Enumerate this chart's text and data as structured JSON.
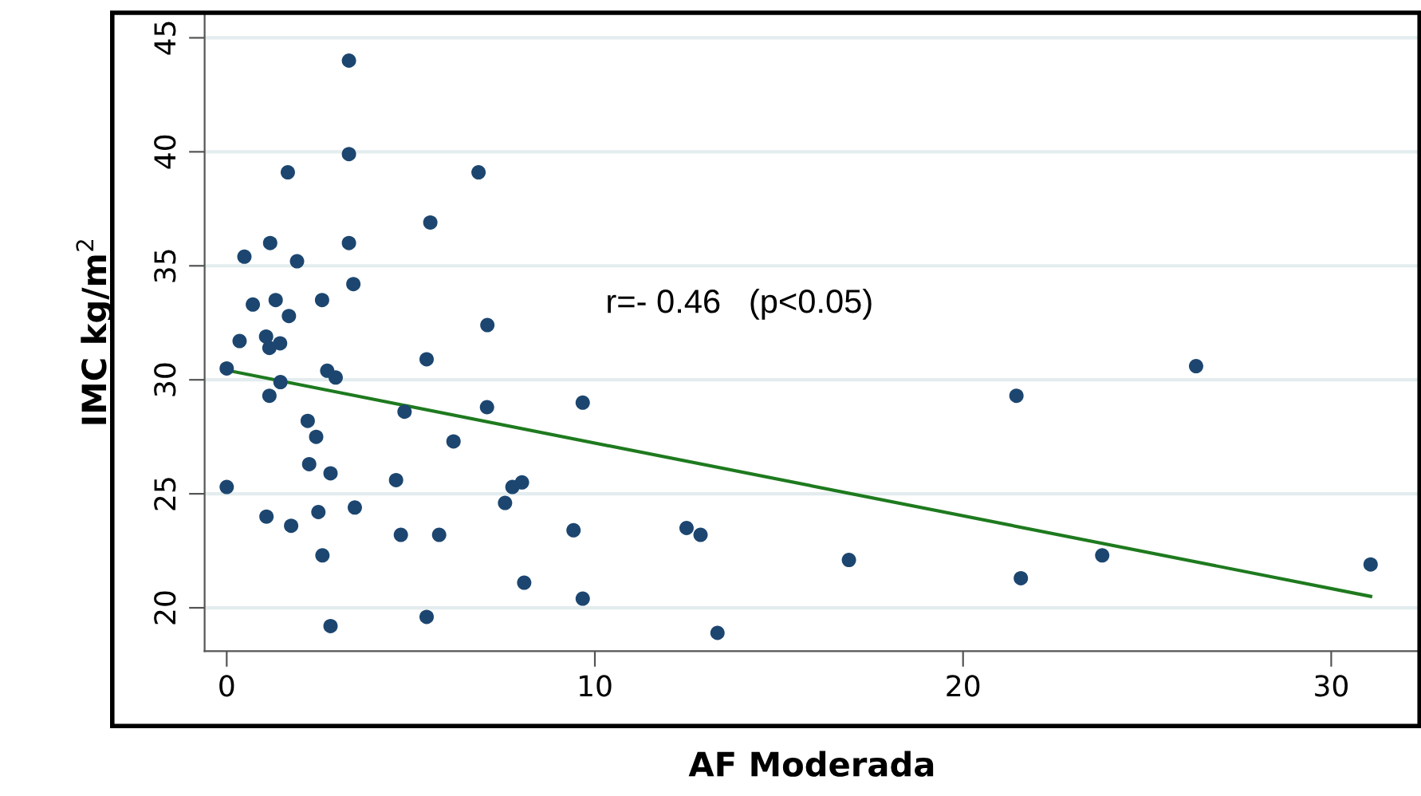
{
  "chart_data": {
    "type": "scatter",
    "xlabel": "AF Moderada",
    "ylabel": "IMC kg/m$^{2}$",
    "annotations": [
      "r=- 0.46   (p<0.05)"
    ],
    "xlim": [
      -0.6,
      32.4
    ],
    "ylim": [
      18.1,
      46.1
    ],
    "xticks": [
      0,
      10,
      20,
      30
    ],
    "yticks": [
      20,
      25,
      30,
      35,
      40,
      45
    ],
    "grid": "y",
    "series": [
      {
        "marker": "circle",
        "color": "#1c4670",
        "x": [
          3.32,
          3.32,
          1.66,
          6.84,
          5.53,
          1.18,
          3.32,
          0.48,
          1.91,
          3.44,
          0.71,
          1.33,
          2.59,
          1.69,
          7.08,
          0.35,
          1.07,
          1.16,
          1.45,
          0,
          5.43,
          2.73,
          2.96,
          1.46,
          1.16,
          4.83,
          7.07,
          2.2,
          2.43,
          6.16,
          2.24,
          2.82,
          0,
          4.6,
          7.76,
          8.02,
          7.56,
          1.08,
          3.48,
          2.49,
          1.75,
          4.73,
          5.77,
          2.6,
          8.08,
          5.43,
          2.82,
          9.67,
          21.45,
          26.33,
          9.42,
          12.49,
          12.87,
          16.9,
          21.57,
          23.78,
          31.07,
          9.67,
          13.33
        ],
        "values": [
          44.0,
          39.9,
          39.1,
          39.1,
          36.9,
          36.0,
          36.0,
          35.4,
          35.2,
          34.2,
          33.3,
          33.5,
          33.5,
          32.8,
          32.4,
          31.7,
          31.9,
          31.4,
          31.6,
          30.5,
          30.9,
          30.4,
          30.1,
          29.9,
          29.3,
          28.6,
          28.8,
          28.2,
          27.5,
          27.3,
          26.3,
          25.9,
          25.3,
          25.6,
          25.3,
          25.5,
          24.6,
          24.0,
          24.4,
          24.2,
          23.6,
          23.2,
          23.2,
          22.3,
          21.1,
          19.6,
          19.2,
          29.0,
          29.3,
          30.6,
          23.4,
          23.5,
          23.2,
          22.1,
          21.3,
          22.3,
          21.9,
          20.4,
          18.9
        ]
      },
      {
        "type": "line",
        "color": "#1e7a1e",
        "x": [
          0,
          31.07
        ],
        "values": [
          30.42,
          20.5
        ]
      }
    ]
  }
}
